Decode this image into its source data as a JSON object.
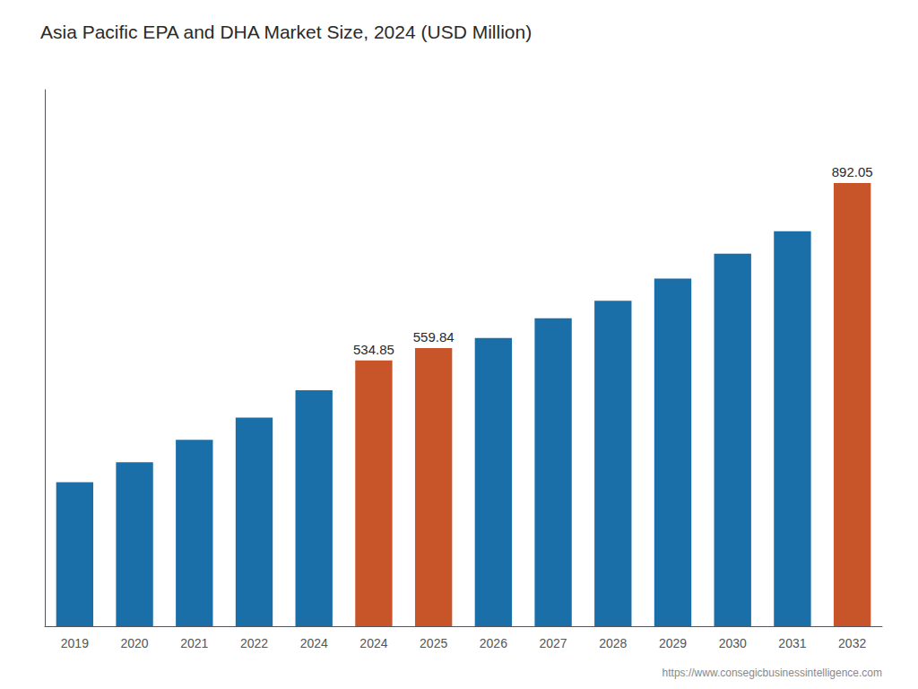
{
  "chart_data": {
    "type": "bar",
    "title": "Asia Pacific EPA and DHA Market Size, 2024 (USD Million)",
    "categories": [
      "2019",
      "2020",
      "2021",
      "2022",
      "2024",
      "2024",
      "2025",
      "2026",
      "2027",
      "2028",
      "2029",
      "2030",
      "2031",
      "2032"
    ],
    "values": [
      290,
      330,
      375,
      420,
      475,
      534.85,
      559.84,
      580,
      620,
      655,
      700,
      750,
      795,
      892.05
    ],
    "value_labels": [
      null,
      null,
      null,
      null,
      null,
      "534.85",
      "559.84",
      null,
      null,
      null,
      null,
      null,
      null,
      "892.05"
    ],
    "colors": [
      "#1a6fa8",
      "#1a6fa8",
      "#1a6fa8",
      "#1a6fa8",
      "#1a6fa8",
      "#c8552a",
      "#c8552a",
      "#1a6fa8",
      "#1a6fa8",
      "#1a6fa8",
      "#1a6fa8",
      "#1a6fa8",
      "#1a6fa8",
      "#c8552a"
    ],
    "ylim": [
      0,
      1080
    ],
    "grid": false,
    "tick_labels": "x",
    "annotations": [
      "https://www.consegicbusinessintelligence.com"
    ]
  }
}
